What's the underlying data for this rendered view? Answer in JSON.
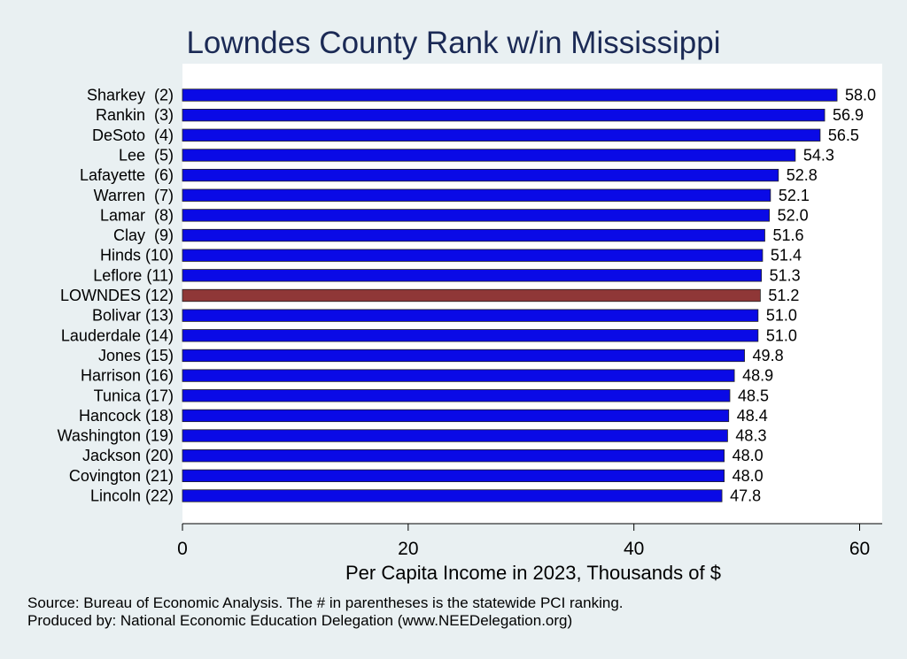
{
  "chart_data": {
    "type": "bar",
    "orientation": "horizontal",
    "title": "Lowndes County Rank w/in Mississippi",
    "xlabel": "Per Capita Income in 2023, Thousands of $",
    "ylabel": "",
    "xlim": [
      0,
      62
    ],
    "xticks": [
      0,
      20,
      40,
      60
    ],
    "grid": false,
    "categories": [
      "Sharkey  (2)",
      "Rankin  (3)",
      "DeSoto  (4)",
      "Lee  (5)",
      "Lafayette  (6)",
      "Warren  (7)",
      "Lamar  (8)",
      "Clay  (9)",
      "Hinds (10)",
      "Leflore (11)",
      "LOWNDES (12)",
      "Bolivar (13)",
      "Lauderdale (14)",
      "Jones (15)",
      "Harrison (16)",
      "Tunica (17)",
      "Hancock (18)",
      "Washington (19)",
      "Jackson (20)",
      "Covington (21)",
      "Lincoln (22)"
    ],
    "values": [
      58.0,
      56.9,
      56.5,
      54.3,
      52.8,
      52.1,
      52.0,
      51.6,
      51.4,
      51.3,
      51.2,
      51.0,
      51.0,
      49.8,
      48.9,
      48.5,
      48.4,
      48.3,
      48.0,
      48.0,
      47.8
    ],
    "value_labels": [
      "58.0",
      "56.9",
      "56.5",
      "54.3",
      "52.8",
      "52.1",
      "52.0",
      "51.6",
      "51.4",
      "51.3",
      "51.2",
      "51.0",
      "51.0",
      "49.8",
      "48.9",
      "48.5",
      "48.4",
      "48.3",
      "48.0",
      "48.0",
      "47.8"
    ],
    "highlight_index": 10,
    "colors": {
      "bar": "#0a0ae6",
      "highlight": "#8f3737",
      "plot_bg": "#ffffff",
      "page_bg": "#e9f0f2",
      "title": "#1b2a55"
    }
  },
  "notes": {
    "source": "Source: Bureau of Economic Analysis. The # in parentheses is the statewide PCI ranking.",
    "produced_by": "Produced by: National Economic Education Delegation (www.NEEDelegation.org)"
  }
}
